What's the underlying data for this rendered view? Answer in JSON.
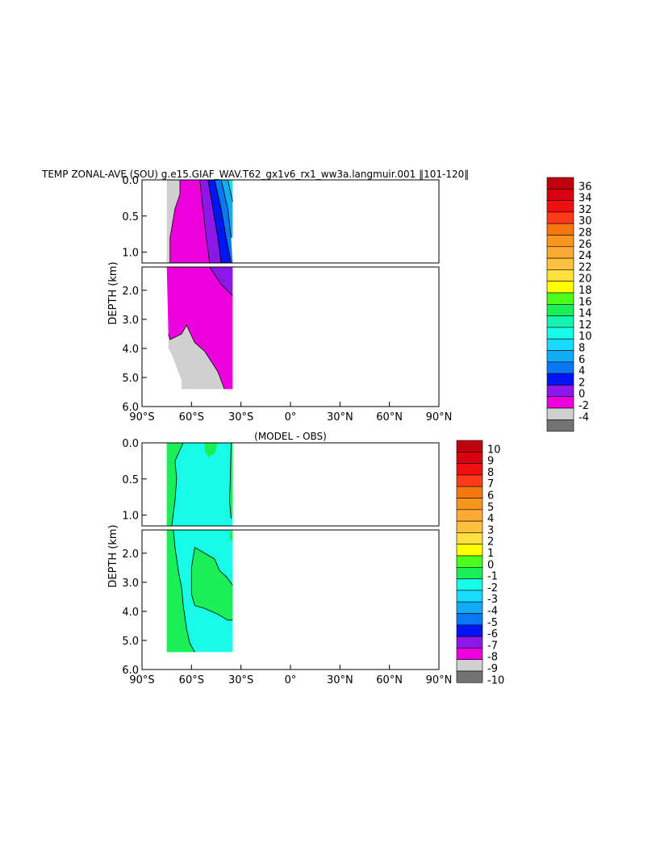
{
  "figure": {
    "title": "TEMP ZONAL-AVE (SOU) g.e15.GIAF_WAV.T62_gx1v6_rx1_ww3a.langmuir.001 ‖101-120‖",
    "diff_title": "(MODEL - OBS)"
  },
  "chart_data": [
    {
      "type": "heatmap",
      "title": "TEMP ZONAL-AVE (SOU) g.e15.GIAF_WAV.T62_gx1v6_rx1_ww3a.langmuir.001 ‖101-120‖",
      "ylabel": "DEPTH (km)",
      "xlim": [
        -90,
        90
      ],
      "ylim": [
        6.0,
        0.0
      ],
      "y_break_km": 1.2,
      "x_ticks": [
        "90°S",
        "60°S",
        "30°S",
        "0°",
        "30°N",
        "60°N",
        "90°N"
      ],
      "y_ticks_upper": [
        "0.0",
        "0.5",
        "1.0"
      ],
      "y_ticks_lower": [
        "2.0",
        "3.0",
        "4.0",
        "5.0",
        "6.0"
      ],
      "colorbar_labels": [
        "36",
        "34",
        "32",
        "30",
        "28",
        "26",
        "24",
        "22",
        "20",
        "18",
        "16",
        "14",
        "12",
        "10",
        "8",
        "6",
        "4",
        "2",
        "0",
        "-2",
        "-4"
      ],
      "colorbar_colors": [
        "#c0000e",
        "#d9000f",
        "#f20f0f",
        "#ff3a1a",
        "#f4780f",
        "#f7961f",
        "#fbab33",
        "#fdc03f",
        "#fde23f",
        "#ffff00",
        "#4cff1a",
        "#19ef56",
        "#15f2b2",
        "#16fce6",
        "#18dcfb",
        "#11acf6",
        "#0a78f4",
        "#0014f4",
        "#8c17e8",
        "#ec00dc",
        "#d0d0d0",
        "#737373"
      ],
      "data_extent": {
        "lat": [
          -75,
          -35
        ],
        "depth_km": [
          0.0,
          5.4
        ]
      },
      "regions_note_lat_range": "values shown only between ~75°S and ~35°S"
    },
    {
      "type": "heatmap",
      "title": "(MODEL - OBS)",
      "ylabel": "DEPTH (km)",
      "xlim": [
        -90,
        90
      ],
      "ylim": [
        6.0,
        0.0
      ],
      "y_break_km": 1.2,
      "x_ticks": [
        "90°S",
        "60°S",
        "30°S",
        "0°",
        "30°N",
        "60°N",
        "90°N"
      ],
      "y_ticks_upper": [
        "0.0",
        "0.5",
        "1.0"
      ],
      "y_ticks_lower": [
        "2.0",
        "3.0",
        "4.0",
        "5.0",
        "6.0"
      ],
      "colorbar_labels": [
        "10",
        "9",
        "8",
        "7",
        "6",
        "5",
        "4",
        "3",
        "2",
        "1",
        "0",
        "-1",
        "-2",
        "-3",
        "-4",
        "-5",
        "-6",
        "-7",
        "-8",
        "-9",
        "-10"
      ],
      "colorbar_colors": [
        "#c0000e",
        "#d9000f",
        "#f20f0f",
        "#ff3a1a",
        "#f4780f",
        "#f7961f",
        "#fbab33",
        "#fdc03f",
        "#fde23f",
        "#ffff00",
        "#4cff1a",
        "#19ef56",
        "#16fce6",
        "#18dcfb",
        "#11acf6",
        "#0a78f4",
        "#0014f4",
        "#8c17e8",
        "#ec00dc",
        "#d0d0d0",
        "#737373"
      ],
      "data_extent": {
        "lat": [
          -75,
          -35
        ],
        "depth_km": [
          0.0,
          5.4
        ]
      }
    }
  ]
}
